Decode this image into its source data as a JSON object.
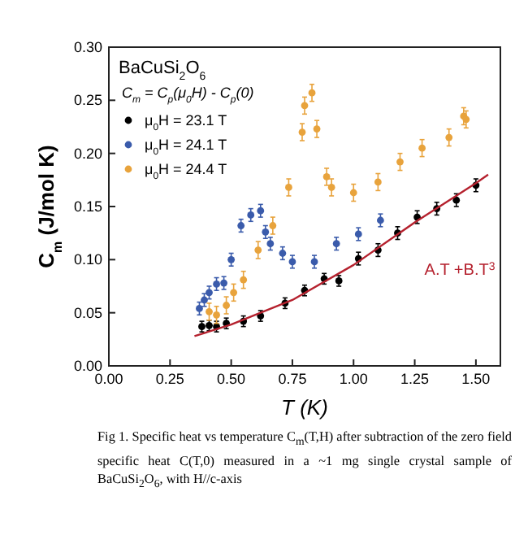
{
  "chart_data": {
    "type": "scatter",
    "xlabel": "T (K)",
    "ylabel": "C$_{m}$ (J/mol K)",
    "legend_title": "BaCuSi$_{2}$O$_{6}$",
    "legend": "top left",
    "marker": "circle",
    "grid": false,
    "xlim": [
      0,
      1.6
    ],
    "xticks": [
      {
        "value": 0,
        "label": "0.00"
      },
      0.25,
      {
        "value": 0.5,
        "label": "0.50"
      },
      0.75,
      {
        "value": 1,
        "label": "1.00"
      },
      1.25,
      {
        "value": 1.5,
        "label": "1.50"
      }
    ],
    "ylim": [
      0,
      0.3
    ],
    "yticks": [
      {
        "value": 0,
        "label": "0.00"
      },
      0.05,
      {
        "value": 0.1,
        "label": "0.10"
      },
      0.15,
      {
        "value": 0.2,
        "label": "0.20"
      },
      0.25,
      {
        "value": 0.3,
        "label": "0.30"
      }
    ],
    "series": [
      {
        "name": "μ$_{0}$H = 23.1 T",
        "color": "#000000",
        "x": [
          0.38,
          0.41,
          0.44,
          0.48,
          0.55,
          0.62,
          0.72,
          0.8,
          0.88,
          0.94,
          1.02,
          1.1,
          1.18,
          1.26,
          1.34,
          1.42,
          1.5
        ],
        "values": [
          0.037,
          0.038,
          0.037,
          0.04,
          0.042,
          0.047,
          0.059,
          0.071,
          0.082,
          0.08,
          0.101,
          0.109,
          0.125,
          0.14,
          0.148,
          0.156,
          0.17
        ],
        "errors": [
          0.005,
          0.005,
          0.005,
          0.005,
          0.005,
          0.005,
          0.005,
          0.005,
          0.005,
          0.005,
          0.006,
          0.006,
          0.006,
          0.006,
          0.006,
          0.006,
          0.006
        ]
      },
      {
        "name": "μ$_{0}$H = 24.1 T",
        "color": "#3a5bab",
        "x": [
          0.37,
          0.39,
          0.41,
          0.44,
          0.47,
          0.5,
          0.54,
          0.58,
          0.62,
          0.64,
          0.66,
          0.71,
          0.75,
          0.84,
          0.93,
          1.02,
          1.11
        ],
        "values": [
          0.054,
          0.062,
          0.069,
          0.077,
          0.078,
          0.1,
          0.132,
          0.142,
          0.146,
          0.126,
          0.115,
          0.106,
          0.098,
          0.098,
          0.115,
          0.124,
          0.137
        ],
        "errors": [
          0.006,
          0.006,
          0.006,
          0.006,
          0.006,
          0.006,
          0.006,
          0.006,
          0.006,
          0.006,
          0.006,
          0.006,
          0.006,
          0.006,
          0.006,
          0.006,
          0.006
        ]
      },
      {
        "name": "μ$_{0}$H = 24.4 T",
        "color": "#e8a33c",
        "x": [
          0.41,
          0.44,
          0.48,
          0.51,
          0.55,
          0.61,
          0.67,
          0.735,
          0.79,
          0.8,
          0.83,
          0.85,
          0.89,
          0.91,
          1.0,
          1.1,
          1.19,
          1.28,
          1.39,
          1.45,
          1.46
        ],
        "values": [
          0.051,
          0.048,
          0.057,
          0.069,
          0.081,
          0.109,
          0.132,
          0.168,
          0.22,
          0.245,
          0.257,
          0.223,
          0.178,
          0.168,
          0.163,
          0.173,
          0.192,
          0.205,
          0.215,
          0.235,
          0.232
        ],
        "errors": [
          0.008,
          0.008,
          0.008,
          0.008,
          0.008,
          0.008,
          0.008,
          0.008,
          0.008,
          0.008,
          0.008,
          0.008,
          0.008,
          0.008,
          0.008,
          0.008,
          0.008,
          0.008,
          0.008,
          0.008,
          0.008
        ]
      },
      {
        "type": "line",
        "marker": "none",
        "color": "#b5212e",
        "x": [
          0.35,
          0.5,
          0.75,
          1.0,
          1.25,
          1.5,
          1.55
        ],
        "values": [
          0.028,
          0.039,
          0.062,
          0.095,
          0.135,
          0.172,
          0.18
        ]
      }
    ],
    "annotations": [
      {
        "text": "A.T +B.T$^{3}$",
        "x": 1.25,
        "y": 0.135
      },
      "C$_{m}$ = C$_{p}$(μ$_{0}$H) - C$_{p}$(0)",
      "Fig 1. Specific heat vs temperature C$_{m}$(T,H) after subtraction of the zero field specific heat C(T,0) measured in a ~1 mg single crystal sample of BaCuSi$_{2}$O$_{6}$, with H//c-axis"
    ]
  }
}
